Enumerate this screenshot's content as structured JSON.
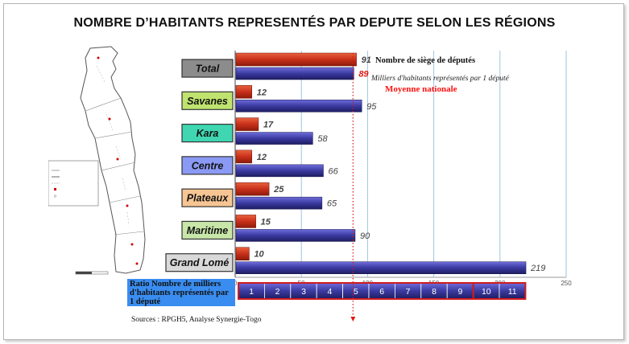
{
  "title": "NOMBRE D’HABITANTS REPRESENTÉS PAR DEPUTE SELON  LES RÉGIONS",
  "legend": {
    "deputies": "Nombre de siège de députés",
    "inhabitants": "Milliers d'habitants représentés par 1 député",
    "national_average": "Moyenne nationale"
  },
  "ratio_label": "Ratio Nombre de milliers d'habitants représentés par 1 député",
  "sources": "Sources : RPGH5, Analyse Synergie-Togo",
  "colors": {
    "deputies_bar": "#c8301a",
    "inhabitants_bar": "#3b3aa0",
    "average_line": "#e01818",
    "grid": "#9ec6df"
  },
  "chart_data": {
    "type": "bar",
    "orientation": "horizontal",
    "categories": [
      "Total",
      "Savanes",
      "Kara",
      "Centre",
      "Plateaux",
      "Maritime",
      "Grand Lomé"
    ],
    "category_colors": [
      "#8c8c8c",
      "#bfe36e",
      "#3fd6b1",
      "#8a9af4",
      "#f7c593",
      "#c7e6a8",
      "#d9d9d9"
    ],
    "series": [
      {
        "name": "Nombre de siège de députés",
        "values": [
          91,
          12,
          17,
          12,
          25,
          15,
          10
        ]
      },
      {
        "name": "Milliers d'habitants représentés par 1 député",
        "values": [
          89,
          95,
          58,
          66,
          65,
          90,
          219
        ]
      }
    ],
    "value_labels_highlight": [
      true,
      false,
      false,
      false,
      false,
      false,
      false
    ],
    "reference_line": {
      "name": "Moyenne nationale",
      "value": 89
    },
    "xlim": [
      0,
      250
    ],
    "xticks": [
      0,
      50,
      100,
      150,
      200,
      250
    ],
    "grid": true,
    "scale_boxes": [
      "1",
      "2",
      "3",
      "4",
      "5",
      "6",
      "7",
      "8",
      "9",
      "10",
      "11"
    ]
  }
}
